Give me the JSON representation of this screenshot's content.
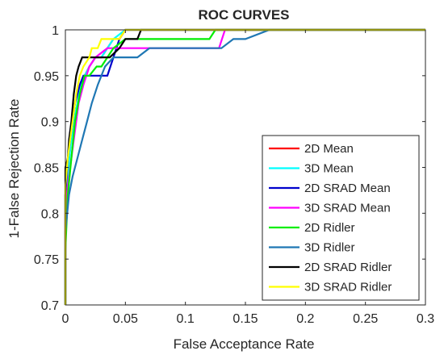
{
  "chart_data": {
    "type": "line",
    "title": "ROC CURVES",
    "xlabel": "False Acceptance Rate",
    "ylabel": "1-False Rejection Rate",
    "xlim": [
      0,
      0.3
    ],
    "ylim": [
      0.7,
      1.0
    ],
    "xticks": [
      0,
      0.05,
      0.1,
      0.15,
      0.2,
      0.25,
      0.3
    ],
    "xtick_labels": [
      "0",
      "0.05",
      "0.1",
      "0.15",
      "0.2",
      "0.25",
      "0.3"
    ],
    "yticks": [
      0.7,
      0.75,
      0.8,
      0.85,
      0.9,
      0.95,
      1.0
    ],
    "ytick_labels": [
      "0.7",
      "0.75",
      "0.8",
      "0.85",
      "0.9",
      "0.95",
      "1"
    ],
    "grid": false,
    "legend_position": "bottom-right",
    "series": [
      {
        "name": "2D Mean",
        "color": "#ff0000",
        "x": [
          0,
          0,
          0.002,
          0.004,
          0.006,
          0.008,
          0.01,
          0.013,
          0.016,
          0.02,
          0.025,
          0.03,
          0.035,
          0.04,
          0.045,
          0.05,
          0.06,
          0.07,
          0.3
        ],
        "y": [
          0.7,
          0.82,
          0.85,
          0.87,
          0.9,
          0.92,
          0.93,
          0.94,
          0.95,
          0.96,
          0.97,
          0.97,
          0.98,
          0.99,
          0.99,
          1.0,
          1.0,
          1.0,
          1.0
        ]
      },
      {
        "name": "3D Mean",
        "color": "#00ffff",
        "x": [
          0,
          0,
          0.002,
          0.004,
          0.007,
          0.01,
          0.013,
          0.016,
          0.02,
          0.025,
          0.03,
          0.035,
          0.04,
          0.05,
          0.06,
          0.3
        ],
        "y": [
          0.7,
          0.82,
          0.84,
          0.87,
          0.9,
          0.92,
          0.94,
          0.95,
          0.96,
          0.97,
          0.97,
          0.98,
          0.99,
          1.0,
          1.0,
          1.0
        ]
      },
      {
        "name": "2D SRAD Mean",
        "color": "#0000cc",
        "x": [
          0,
          0,
          0.002,
          0.004,
          0.006,
          0.008,
          0.01,
          0.012,
          0.015,
          0.02,
          0.025,
          0.035,
          0.04,
          0.045,
          0.05,
          0.052,
          0.3
        ],
        "y": [
          0.7,
          0.82,
          0.86,
          0.88,
          0.9,
          0.92,
          0.93,
          0.94,
          0.95,
          0.95,
          0.95,
          0.95,
          0.97,
          0.99,
          1.0,
          1.0,
          1.0
        ]
      },
      {
        "name": "3D SRAD Mean",
        "color": "#ff00ff",
        "x": [
          0,
          0,
          0.002,
          0.005,
          0.008,
          0.011,
          0.015,
          0.02,
          0.025,
          0.035,
          0.045,
          0.05,
          0.128,
          0.133,
          0.3
        ],
        "y": [
          0.7,
          0.8,
          0.83,
          0.86,
          0.89,
          0.92,
          0.94,
          0.96,
          0.97,
          0.98,
          0.98,
          0.98,
          0.98,
          1.0,
          1.0
        ],
        "note_hidden": ""
      },
      {
        "name": "2D Ridler",
        "color": "#00ee00",
        "x": [
          0,
          0,
          0.002,
          0.005,
          0.008,
          0.012,
          0.016,
          0.02,
          0.026,
          0.03,
          0.035,
          0.04,
          0.05,
          0.12,
          0.125,
          0.13,
          0.3
        ],
        "y": [
          0.7,
          0.76,
          0.82,
          0.86,
          0.9,
          0.93,
          0.95,
          0.95,
          0.96,
          0.96,
          0.97,
          0.98,
          0.99,
          0.99,
          1.0,
          1.0,
          1.0
        ]
      },
      {
        "name": "3D Ridler",
        "color": "#1f77b4",
        "x": [
          0,
          0,
          0.003,
          0.006,
          0.01,
          0.014,
          0.018,
          0.022,
          0.027,
          0.033,
          0.04,
          0.05,
          0.06,
          0.07,
          0.08,
          0.09,
          0.13,
          0.14,
          0.15,
          0.17,
          0.3
        ],
        "y": [
          0.7,
          0.78,
          0.82,
          0.84,
          0.86,
          0.88,
          0.9,
          0.92,
          0.94,
          0.96,
          0.97,
          0.97,
          0.97,
          0.98,
          0.98,
          0.98,
          0.98,
          0.99,
          0.99,
          1.0,
          1.0
        ]
      },
      {
        "name": "2D SRAD Ridler",
        "color": "#000000",
        "x": [
          0,
          0,
          0.002,
          0.003,
          0.005,
          0.007,
          0.009,
          0.011,
          0.014,
          0.025,
          0.035,
          0.037,
          0.045,
          0.05,
          0.06,
          0.063,
          0.3
        ],
        "y": [
          0.7,
          0.85,
          0.86,
          0.88,
          0.9,
          0.93,
          0.95,
          0.96,
          0.97,
          0.97,
          0.97,
          0.97,
          0.98,
          0.99,
          0.99,
          1.0,
          1.0
        ]
      },
      {
        "name": "3D SRAD Ridler",
        "color": "#ffff00",
        "x": [
          0,
          0,
          0.002,
          0.004,
          0.006,
          0.009,
          0.012,
          0.015,
          0.02,
          0.022,
          0.027,
          0.03,
          0.037,
          0.04,
          0.045,
          0.05,
          0.06,
          0.3
        ],
        "y": [
          0.7,
          0.83,
          0.86,
          0.88,
          0.9,
          0.93,
          0.95,
          0.96,
          0.97,
          0.98,
          0.98,
          0.99,
          0.99,
          0.99,
          0.99,
          1.0,
          1.0,
          1.0
        ]
      }
    ]
  }
}
